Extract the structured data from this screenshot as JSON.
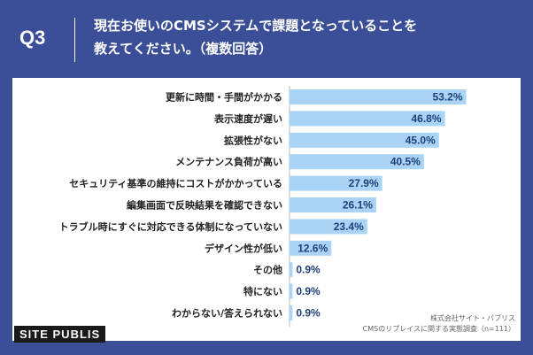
{
  "header": {
    "question": "Q3",
    "title_line1": "現在お使いのCMSシステムで課題となっていることを",
    "title_line2": "教えてください。（複数回答）"
  },
  "colors": {
    "background": "#3b4f98",
    "bar": "#a9d4f5",
    "card": "#ffffff"
  },
  "chart_data": {
    "type": "bar",
    "orientation": "horizontal",
    "title": "",
    "xlim": [
      0,
      60
    ],
    "unit": "%",
    "categories": [
      "更新に時間・手間がかかる",
      "表示速度が遅い",
      "拡張性がない",
      "メンテナンス負荷が高い",
      "セキュリティ基準の維持にコストがかかっている",
      "編集画面で反映結果を確認できない",
      "トラブル時にすぐに対応できる体制になっていない",
      "デザイン性が低い",
      "その他",
      "特にない",
      "わからない/答えられない"
    ],
    "values": [
      53.2,
      46.8,
      45.0,
      40.5,
      27.9,
      26.1,
      23.4,
      12.6,
      0.9,
      0.9,
      0.9
    ],
    "value_labels": [
      "53.2%",
      "46.8%",
      "45.0%",
      "40.5%",
      "27.9%",
      "26.1%",
      "23.4%",
      "12.6%",
      "0.9%",
      "0.9%",
      "0.9%"
    ]
  },
  "footer": {
    "logo": "SITE PUBLIS",
    "source_line1": "株式会社サイト・パブリス",
    "source_line2": "CMSのリプレイスに関する実態調査（n=111）"
  }
}
